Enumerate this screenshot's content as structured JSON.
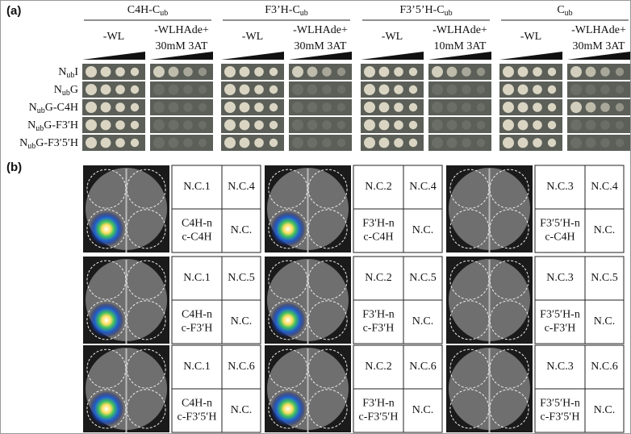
{
  "panel_a": {
    "label": "(a)",
    "groups": [
      {
        "name": "C4H-C",
        "sub": "ub",
        "conditions": [
          [
            "-WL"
          ],
          [
            "-WLHAde+",
            "30mM 3AT"
          ]
        ]
      },
      {
        "name": "F3’H-C",
        "sub": "ub",
        "conditions": [
          [
            "-WL"
          ],
          [
            "-WLHAde+",
            "30mM 3AT"
          ]
        ]
      },
      {
        "name": "F3’5’H-C",
        "sub": "ub",
        "conditions": [
          [
            "-WL"
          ],
          [
            "-WLHAde+",
            "10mM 3AT"
          ]
        ]
      },
      {
        "name": "C",
        "sub": "ub",
        "conditions": [
          [
            "-WL"
          ],
          [
            "-WLHAde+",
            "30mM 3AT"
          ]
        ]
      }
    ],
    "rows": [
      {
        "prefix": "N",
        "sub": "ub",
        "suffix": "I"
      },
      {
        "prefix": "N",
        "sub": "ub",
        "suffix": "G"
      },
      {
        "prefix": "N",
        "sub": "ub",
        "suffix": "G-C4H"
      },
      {
        "prefix": "N",
        "sub": "ub",
        "suffix": "G-F3′H"
      },
      {
        "prefix": "N",
        "sub": "ub",
        "suffix": "G-F3′5′H"
      }
    ]
  },
  "panel_b": {
    "label": "(b)",
    "rows": [
      [
        {
          "cells": [
            [
              [
                "N.C.1"
              ],
              [
                "N.C.4"
              ]
            ],
            [
              [
                "C4H-n",
                "c-C4H"
              ],
              [
                "N.C."
              ]
            ]
          ]
        },
        {
          "cells": [
            [
              [
                "N.C.2"
              ],
              [
                "N.C.4"
              ]
            ],
            [
              [
                "F3′H-n",
                "c-C4H"
              ],
              [
                "N.C."
              ]
            ]
          ]
        },
        {
          "cells": [
            [
              [
                "N.C.3"
              ],
              [
                "N.C.4"
              ]
            ],
            [
              [
                "F3′5′H-n",
                "c-C4H"
              ],
              [
                "N.C."
              ]
            ]
          ]
        }
      ],
      [
        {
          "cells": [
            [
              [
                "N.C.1"
              ],
              [
                "N.C.5"
              ]
            ],
            [
              [
                "C4H-n",
                "c-F3′H"
              ],
              [
                "N.C."
              ]
            ]
          ]
        },
        {
          "cells": [
            [
              [
                "N.C.2"
              ],
              [
                "N.C.5"
              ]
            ],
            [
              [
                "F3′H-n",
                "c-F3′H"
              ],
              [
                "N.C."
              ]
            ]
          ]
        },
        {
          "cells": [
            [
              [
                "N.C.3"
              ],
              [
                "N.C.5"
              ]
            ],
            [
              [
                "F3′5′H-n",
                "c-F3′H"
              ],
              [
                "N.C."
              ]
            ]
          ]
        }
      ],
      [
        {
          "cells": [
            [
              [
                "N.C.1"
              ],
              [
                "N.C.6"
              ]
            ],
            [
              [
                "C4H-n",
                "c-F3′5′H"
              ],
              [
                "N.C."
              ]
            ]
          ]
        },
        {
          "cells": [
            [
              [
                "N.C.2"
              ],
              [
                "N.C.6"
              ]
            ],
            [
              [
                "F3′H-n",
                "c-F3′5′H"
              ],
              [
                "N.C."
              ]
            ]
          ]
        },
        {
          "cells": [
            [
              [
                "N.C.3"
              ],
              [
                "N.C.6"
              ]
            ],
            [
              [
                "F3′5′H-n",
                "c-F3′5′H"
              ],
              [
                "N.C."
              ]
            ]
          ]
        }
      ]
    ]
  }
}
